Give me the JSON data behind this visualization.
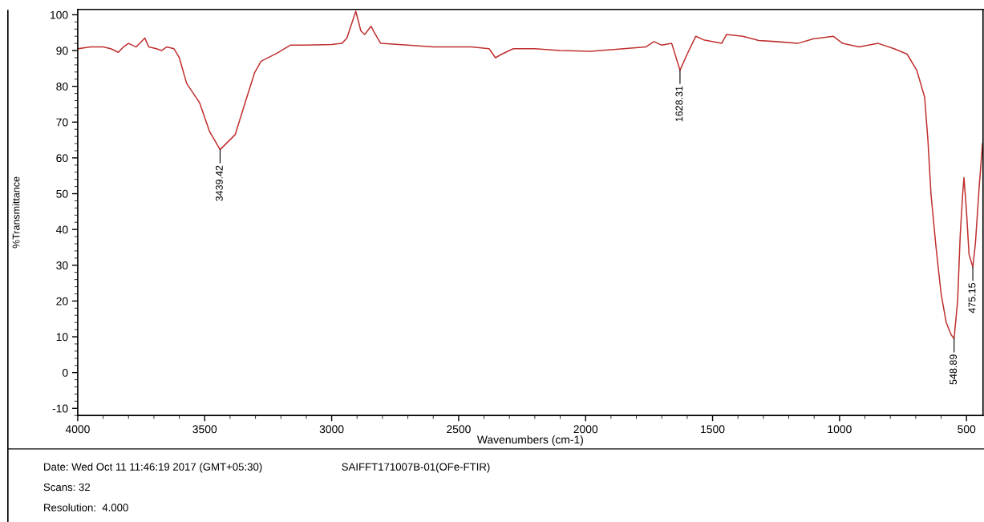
{
  "chart_data": {
    "type": "line",
    "xlabel": "Wavenumbers (cm-1)",
    "ylabel": "%Transmittance",
    "x": [
      4000,
      3950,
      3900,
      3870,
      3840,
      3820,
      3800,
      3770,
      3736,
      3720,
      3690,
      3670,
      3650,
      3621,
      3600,
      3571,
      3520,
      3481,
      3439.42,
      3380,
      3341,
      3303,
      3278,
      3214,
      3163,
      3100,
      3000,
      2960,
      2940,
      2905,
      2885,
      2870,
      2845,
      2832,
      2807,
      2700,
      2600,
      2450,
      2380,
      2355,
      2330,
      2285,
      2200,
      2100,
      1980,
      1850,
      1763,
      1731,
      1700,
      1661,
      1628.31,
      1600,
      1566,
      1535,
      1464,
      1445,
      1381,
      1318,
      1250,
      1165,
      1101,
      1025,
      988,
      924,
      848,
      785,
      734,
      696,
      665,
      652,
      640,
      620,
      600,
      580,
      560,
      548.89,
      535,
      525,
      515,
      510,
      500,
      490,
      475.15,
      465,
      450,
      437
    ],
    "series": [
      {
        "color": "#c0302f",
        "values": [
          90.5,
          91,
          91,
          90.5,
          89.5,
          91,
          92,
          91,
          93.5,
          91,
          90.5,
          90,
          91,
          90.5,
          88,
          80.8,
          75.4,
          67.4,
          62.3,
          66.5,
          75.4,
          83.9,
          87,
          89.3,
          91.5,
          91.5,
          91.7,
          92,
          93.5,
          101,
          95.5,
          94.5,
          96.8,
          95,
          92,
          91.5,
          91,
          91,
          90.5,
          88,
          89,
          90.5,
          90.5,
          90,
          89.8,
          90.5,
          91,
          92.5,
          91.5,
          92,
          84.5,
          89,
          94,
          93,
          92,
          94.5,
          94,
          92.8,
          92.5,
          92,
          93.3,
          94,
          92,
          91,
          92,
          90.5,
          89,
          84.5,
          77,
          65,
          50,
          35,
          22,
          14,
          10.5,
          9.5,
          20,
          38,
          50,
          54.5,
          45,
          33,
          29.5,
          36,
          52,
          64
        ]
      }
    ],
    "xlim": [
      4000,
      435
    ],
    "xticks": [
      4000,
      3500,
      3000,
      2500,
      2000,
      1500,
      1000,
      500
    ],
    "ylim": [
      -12,
      101.5
    ],
    "yticks": [
      -10,
      0,
      10,
      20,
      30,
      40,
      50,
      60,
      70,
      80,
      90,
      100
    ],
    "grid": false,
    "legend": false,
    "marker": "none",
    "line_style": "solid",
    "annotations": [
      {
        "text": "3439.42",
        "x": 3439.42,
        "y": 62.3
      },
      {
        "text": "1628.31",
        "x": 1628.31,
        "y": 84.5
      },
      {
        "text": "548.89",
        "x": 548.89,
        "y": 9.5
      },
      {
        "text": "475.15",
        "x": 475.15,
        "y": 29.5
      },
      "Date: Wed Oct 11 11:46:19 2017 (GMT+05:30)",
      "SAIFFT171007B-01(OFe-FTIR)",
      "Scans: 32",
      "Resolution:  4.000"
    ]
  }
}
